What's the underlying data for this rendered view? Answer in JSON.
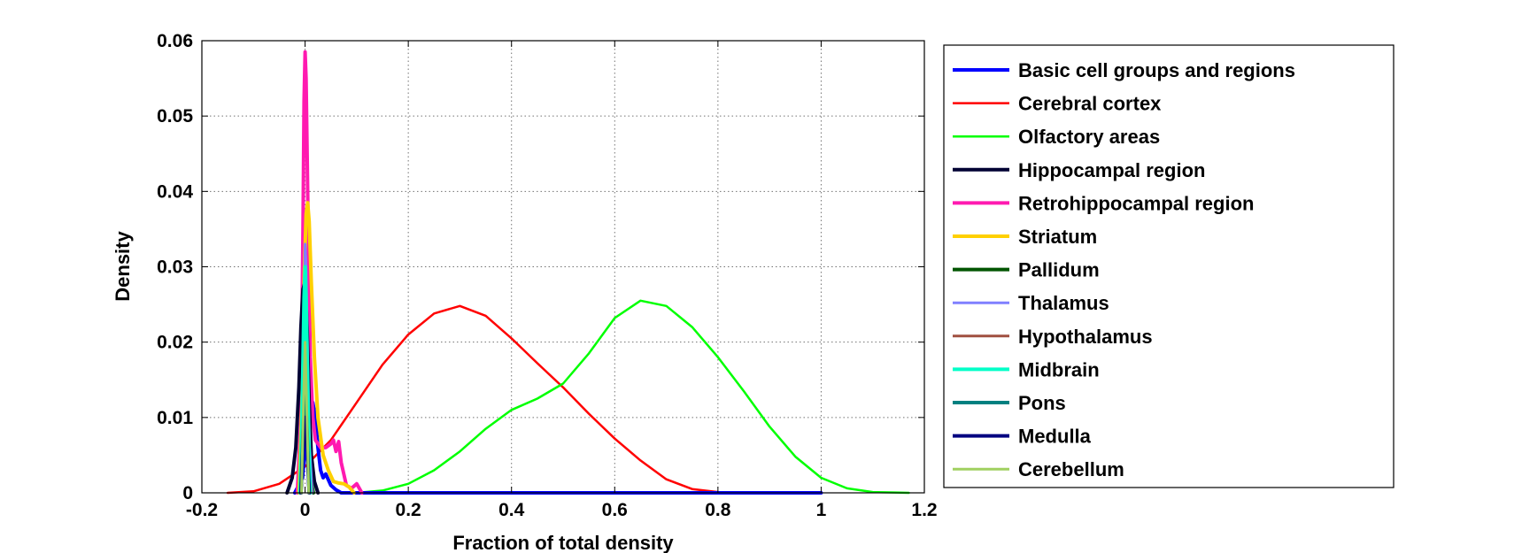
{
  "chart_data": {
    "type": "line",
    "title": "",
    "xlabel": "Fraction of total density",
    "ylabel": "Density",
    "xlim": [
      -0.2,
      1.2
    ],
    "ylim": [
      0,
      0.06
    ],
    "xticks": [
      -0.2,
      0,
      0.2,
      0.4,
      0.6,
      0.8,
      1,
      1.2
    ],
    "xtick_labels": [
      "-0.2",
      "0",
      "0.2",
      "0.4",
      "0.6",
      "0.8",
      "1",
      "1.2"
    ],
    "yticks": [
      0,
      0.01,
      0.02,
      0.03,
      0.04,
      0.05,
      0.06
    ],
    "ytick_labels": [
      "0",
      "0.01",
      "0.02",
      "0.03",
      "0.04",
      "0.05",
      "0.06"
    ],
    "grid": true,
    "legend_position": "outside-right",
    "series": [
      {
        "name": "Basic cell groups and regions",
        "color": "#0000ff",
        "width": 4,
        "x": [
          -0.02,
          -0.005,
          0.005,
          0.015,
          0.02,
          0.025,
          0.03,
          0.035,
          0.04,
          0.05,
          0.06,
          0.07,
          1.0
        ],
        "y": [
          0,
          0.002,
          0.01,
          0.012,
          0.01,
          0.006,
          0.003,
          0.002,
          0.0025,
          0.001,
          0.0004,
          0,
          0
        ]
      },
      {
        "name": "Cerebral cortex",
        "color": "#ff0000",
        "width": 2.5,
        "x": [
          -0.15,
          -0.1,
          -0.05,
          0,
          0.05,
          0.1,
          0.15,
          0.2,
          0.25,
          0.3,
          0.35,
          0.4,
          0.45,
          0.5,
          0.55,
          0.6,
          0.65,
          0.7,
          0.75,
          0.8,
          0.85
        ],
        "y": [
          0,
          0.0002,
          0.0012,
          0.0035,
          0.007,
          0.012,
          0.017,
          0.021,
          0.0238,
          0.0248,
          0.0235,
          0.0205,
          0.0172,
          0.014,
          0.0105,
          0.0072,
          0.0043,
          0.0018,
          0.0005,
          0.0001,
          0
        ]
      },
      {
        "name": "Olfactory areas",
        "color": "#00ff00",
        "width": 2.5,
        "x": [
          0.1,
          0.15,
          0.2,
          0.25,
          0.3,
          0.35,
          0.4,
          0.45,
          0.5,
          0.55,
          0.6,
          0.65,
          0.7,
          0.75,
          0.8,
          0.85,
          0.9,
          0.95,
          1.0,
          1.05,
          1.1,
          1.17
        ],
        "y": [
          0,
          0.0003,
          0.0012,
          0.003,
          0.0055,
          0.0085,
          0.011,
          0.0125,
          0.0145,
          0.0185,
          0.0232,
          0.0255,
          0.0248,
          0.022,
          0.018,
          0.0135,
          0.0088,
          0.0048,
          0.002,
          0.0006,
          0.0001,
          0
        ]
      },
      {
        "name": "Hippocampal region",
        "color": "#000033",
        "width": 4,
        "x": [
          -0.035,
          -0.025,
          -0.018,
          -0.012,
          -0.008,
          -0.004,
          0,
          0.004,
          0.008,
          0.012,
          0.018,
          0.025
        ],
        "y": [
          0,
          0.002,
          0.006,
          0.014,
          0.022,
          0.027,
          0.028,
          0.022,
          0.012,
          0.005,
          0.0015,
          0
        ]
      },
      {
        "name": "Retrohippocampal region",
        "color": "#ff1ab0",
        "width": 4,
        "x": [
          -0.015,
          -0.008,
          -0.004,
          -0.002,
          0,
          0.002,
          0.004,
          0.007,
          0.01,
          0.015,
          0.02,
          0.03,
          0.04,
          0.05,
          0.055,
          0.06,
          0.065,
          0.07,
          0.075,
          0.08,
          0.09,
          0.1,
          0.11
        ],
        "y": [
          0,
          0.01,
          0.035,
          0.052,
          0.0585,
          0.055,
          0.045,
          0.03,
          0.018,
          0.01,
          0.007,
          0.006,
          0.006,
          0.0065,
          0.007,
          0.0055,
          0.0068,
          0.004,
          0.0025,
          0.001,
          0.0006,
          0.0012,
          0
        ]
      },
      {
        "name": "Striatum",
        "color": "#ffd000",
        "width": 4,
        "x": [
          -0.012,
          -0.006,
          -0.002,
          0.002,
          0.005,
          0.008,
          0.012,
          0.018,
          0.025,
          0.035,
          0.045,
          0.055,
          0.065,
          0.075,
          0.085,
          0.095
        ],
        "y": [
          0,
          0.012,
          0.028,
          0.037,
          0.0385,
          0.036,
          0.028,
          0.018,
          0.01,
          0.005,
          0.003,
          0.0015,
          0.0013,
          0.0012,
          0.0008,
          0
        ]
      },
      {
        "name": "Pallidum",
        "color": "#005500",
        "width": 4,
        "x": [
          -0.008,
          -0.004,
          0,
          0.004,
          0.008,
          0.012,
          0.016
        ],
        "y": [
          0,
          0.006,
          0.012,
          0.01,
          0.005,
          0.0015,
          0
        ]
      },
      {
        "name": "Thalamus",
        "color": "#8080ff",
        "width": 3,
        "x": [
          -0.01,
          -0.005,
          -0.002,
          0,
          0.002,
          0.005,
          0.009,
          0.014
        ],
        "y": [
          0,
          0.008,
          0.025,
          0.033,
          0.03,
          0.018,
          0.006,
          0
        ]
      },
      {
        "name": "Hypothalamus",
        "color": "#a05040",
        "width": 3,
        "x": [
          -0.008,
          -0.004,
          0,
          0.004,
          0.008,
          0.012
        ],
        "y": [
          0,
          0.006,
          0.014,
          0.011,
          0.004,
          0
        ]
      },
      {
        "name": "Midbrain",
        "color": "#00ffc8",
        "width": 4,
        "x": [
          -0.01,
          -0.006,
          -0.002,
          0,
          0.002,
          0.006,
          0.01
        ],
        "y": [
          0,
          0.01,
          0.026,
          0.03,
          0.026,
          0.01,
          0
        ]
      },
      {
        "name": "Pons",
        "color": "#008080",
        "width": 4,
        "x": [
          -0.008,
          -0.004,
          0,
          0.004,
          0.008
        ],
        "y": [
          0,
          0.008,
          0.014,
          0.008,
          0
        ]
      },
      {
        "name": "Medulla",
        "color": "#000080",
        "width": 4,
        "x": [
          -0.008,
          -0.004,
          0,
          0.004,
          0.008
        ],
        "y": [
          0,
          0.006,
          0.01,
          0.006,
          0
        ]
      },
      {
        "name": "Cerebellum",
        "color": "#a0d060",
        "width": 3,
        "x": [
          -0.007,
          -0.003,
          0,
          0.003,
          0.007
        ],
        "y": [
          0,
          0.012,
          0.02,
          0.012,
          0
        ]
      }
    ]
  }
}
